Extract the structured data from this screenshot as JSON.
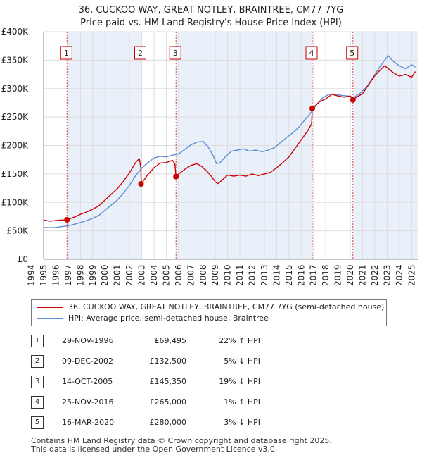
{
  "chart_data": {
    "type": "line",
    "title": "36, CUCKOO WAY, GREAT NOTLEY, BRAINTREE, CM77 7YG",
    "subtitle": "Price paid vs. HM Land Registry's House Price Index (HPI)",
    "xlabel": "",
    "ylabel": "",
    "xlim": [
      1995,
      2025.5
    ],
    "ylim": [
      0,
      400000
    ],
    "y_ticks": [
      {
        "value": 0,
        "label": "£0"
      },
      {
        "value": 50000,
        "label": "£50K"
      },
      {
        "value": 100000,
        "label": "£100K"
      },
      {
        "value": 150000,
        "label": "£150K"
      },
      {
        "value": 200000,
        "label": "£200K"
      },
      {
        "value": 250000,
        "label": "£250K"
      },
      {
        "value": 300000,
        "label": "£300K"
      },
      {
        "value": 350000,
        "label": "£350K"
      },
      {
        "value": 400000,
        "label": "£400K"
      }
    ],
    "x_ticks": [
      "1994",
      "1995",
      "1996",
      "1997",
      "1998",
      "1999",
      "2000",
      "2001",
      "2002",
      "2003",
      "2004",
      "2005",
      "2006",
      "2007",
      "2008",
      "2009",
      "2010",
      "2011",
      "2012",
      "2013",
      "2014",
      "2015",
      "2016",
      "2017",
      "2018",
      "2019",
      "2020",
      "2021",
      "2022",
      "2023",
      "2024",
      "2025"
    ],
    "grid": true,
    "series": [
      {
        "name": "36, CUCKOO WAY, GREAT NOTLEY, BRAINTREE, CM77 7YG (semi-detached house)",
        "color": "#cc0000",
        "x": [
          1995.0,
          1995.5,
          1996.0,
          1996.5,
          1996.91,
          1997.5,
          1998.0,
          1998.5,
          1999.0,
          1999.5,
          2000.0,
          2000.5,
          2001.0,
          2001.5,
          2002.0,
          2002.5,
          2002.8,
          2002.93,
          2002.96,
          2003.5,
          2004.0,
          2004.5,
          2005.0,
          2005.5,
          2005.7,
          2005.79,
          2006.0,
          2006.5,
          2007.0,
          2007.5,
          2007.9,
          2008.3,
          2008.7,
          2009.0,
          2009.2,
          2009.5,
          2010.0,
          2010.5,
          2011.0,
          2011.5,
          2012.0,
          2012.5,
          2013.0,
          2013.5,
          2014.0,
          2014.5,
          2015.0,
          2015.5,
          2016.0,
          2016.5,
          2016.85,
          2016.9,
          2017.5,
          2018.0,
          2018.5,
          2019.0,
          2019.5,
          2020.0,
          2020.21,
          2020.5,
          2021.0,
          2021.5,
          2022.0,
          2022.5,
          2022.8,
          2023.0,
          2023.5,
          2024.0,
          2024.5,
          2025.0,
          2025.3
        ],
        "values": [
          69000,
          67000,
          68000,
          69000,
          69495,
          74000,
          79000,
          83000,
          88000,
          94000,
          104000,
          114000,
          124000,
          137000,
          152000,
          170000,
          177000,
          160000,
          132500,
          149000,
          161000,
          169000,
          170000,
          174000,
          168000,
          145350,
          150000,
          158000,
          165000,
          168000,
          163000,
          155000,
          145000,
          136000,
          133000,
          138000,
          148000,
          146000,
          148000,
          146000,
          150000,
          147000,
          150000,
          153000,
          161000,
          170000,
          180000,
          195000,
          210000,
          225000,
          238000,
          265000,
          277000,
          282000,
          290000,
          287000,
          285000,
          287000,
          280000,
          285000,
          291000,
          307000,
          323000,
          334000,
          340000,
          337000,
          328000,
          322000,
          325000,
          320000,
          330000
        ]
      },
      {
        "name": "HPI: Average price, semi-detached house, Braintree",
        "color": "#5b8fd4",
        "x": [
          1995.0,
          1995.5,
          1996.0,
          1996.5,
          1997.0,
          1997.5,
          1998.0,
          1998.5,
          1999.0,
          1999.5,
          2000.0,
          2000.5,
          2001.0,
          2001.5,
          2002.0,
          2002.5,
          2003.0,
          2003.5,
          2004.0,
          2004.5,
          2005.0,
          2005.5,
          2006.0,
          2006.5,
          2007.0,
          2007.5,
          2008.0,
          2008.4,
          2008.8,
          2009.1,
          2009.4,
          2009.8,
          2010.3,
          2010.8,
          2011.3,
          2011.8,
          2012.3,
          2012.8,
          2013.3,
          2013.8,
          2014.3,
          2014.8,
          2015.3,
          2015.8,
          2016.3,
          2016.8,
          2017.3,
          2017.8,
          2018.3,
          2018.8,
          2019.3,
          2019.8,
          2020.3,
          2020.8,
          2021.3,
          2021.8,
          2022.3,
          2022.8,
          2023.1,
          2023.5,
          2024.0,
          2024.5,
          2025.0,
          2025.3
        ],
        "values": [
          56000,
          55500,
          56000,
          57500,
          59000,
          61500,
          64500,
          68000,
          72000,
          77000,
          86000,
          95000,
          104000,
          116000,
          130000,
          147000,
          160000,
          170000,
          178000,
          181000,
          180000,
          183000,
          185000,
          193000,
          201000,
          206000,
          207000,
          198000,
          183000,
          168000,
          170000,
          180000,
          190000,
          192000,
          194000,
          190000,
          192000,
          189000,
          192000,
          196000,
          205000,
          214000,
          222000,
          232000,
          245000,
          258000,
          273000,
          285000,
          290000,
          290000,
          288000,
          287000,
          285000,
          292000,
          302000,
          318000,
          335000,
          350000,
          358000,
          348000,
          340000,
          335000,
          342000,
          338000
        ]
      }
    ],
    "markers": [
      {
        "label": "1",
        "x": 1996.91,
        "value": 69495
      },
      {
        "label": "2",
        "x": 2002.94,
        "value": 132500
      },
      {
        "label": "3",
        "x": 2005.79,
        "value": 145350
      },
      {
        "label": "4",
        "x": 2016.9,
        "value": 265000
      },
      {
        "label": "5",
        "x": 2020.21,
        "value": 280000
      }
    ]
  },
  "legend": {
    "items": [
      {
        "label": "36, CUCKOO WAY, GREAT NOTLEY, BRAINTREE, CM77 7YG (semi-detached house)",
        "color": "#cc0000"
      },
      {
        "label": "HPI: Average price, semi-detached house, Braintree",
        "color": "#5b8fd4"
      }
    ]
  },
  "transactions": [
    {
      "num": "1",
      "date": "29-NOV-1996",
      "price": "£69,495",
      "hpi": "22% ↑ HPI"
    },
    {
      "num": "2",
      "date": "09-DEC-2002",
      "price": "£132,500",
      "hpi": "5% ↓ HPI"
    },
    {
      "num": "3",
      "date": "14-OCT-2005",
      "price": "£145,350",
      "hpi": "19% ↓ HPI"
    },
    {
      "num": "4",
      "date": "25-NOV-2016",
      "price": "£265,000",
      "hpi": "1% ↑ HPI"
    },
    {
      "num": "5",
      "date": "16-MAR-2020",
      "price": "£280,000",
      "hpi": "3% ↓ HPI"
    }
  ],
  "footer": {
    "line1": "Contains HM Land Registry data © Crown copyright and database right 2025.",
    "line2": "This data is licensed under the Open Government Licence v3.0."
  }
}
